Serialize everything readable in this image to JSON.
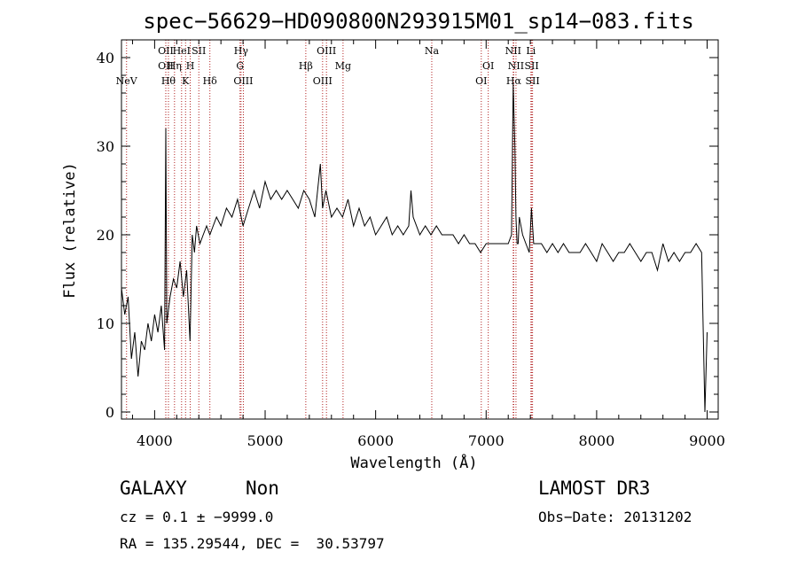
{
  "chart_data": {
    "type": "line",
    "title": "spec−56629−HD090800N293915M01_sp14−083.fits",
    "xlabel": "Wavelength (Å)",
    "ylabel": "Flux (relative)",
    "xlim": [
      3700,
      9100
    ],
    "ylim": [
      -0.8,
      42
    ],
    "xticks": [
      4000,
      5000,
      6000,
      7000,
      8000,
      9000
    ],
    "yticks": [
      0,
      10,
      20,
      30,
      40
    ],
    "grid": false,
    "series": [
      {
        "x": [
          3700,
          3730,
          3760,
          3790,
          3820,
          3850,
          3880,
          3910,
          3940,
          3970,
          4000,
          4030,
          4060,
          4090,
          4101,
          4110,
          4140,
          4170,
          4200,
          4230,
          4260,
          4290,
          4320,
          4340,
          4360,
          4380,
          4410,
          4440,
          4470,
          4500,
          4530,
          4560,
          4600,
          4650,
          4700,
          4750,
          4800,
          4850,
          4900,
          4950,
          5000,
          5050,
          5100,
          5150,
          5200,
          5250,
          5300,
          5350,
          5400,
          5450,
          5500,
          5520,
          5550,
          5600,
          5650,
          5700,
          5750,
          5800,
          5850,
          5900,
          5950,
          6000,
          6050,
          6100,
          6150,
          6200,
          6250,
          6300,
          6320,
          6340,
          6400,
          6450,
          6500,
          6550,
          6600,
          6650,
          6700,
          6750,
          6800,
          6850,
          6900,
          6950,
          7000,
          7050,
          7100,
          7150,
          7200,
          7230,
          7245,
          7260,
          7270,
          7280,
          7290,
          7300,
          7330,
          7360,
          7390,
          7410,
          7430,
          7460,
          7500,
          7550,
          7600,
          7650,
          7700,
          7750,
          7800,
          7850,
          7900,
          7950,
          8000,
          8050,
          8100,
          8150,
          8200,
          8250,
          8300,
          8350,
          8400,
          8450,
          8500,
          8550,
          8600,
          8650,
          8700,
          8750,
          8800,
          8850,
          8900,
          8950,
          8980,
          9000
        ],
        "y": [
          14,
          11,
          13,
          6,
          9,
          4,
          8,
          7,
          10,
          8,
          11,
          9,
          12,
          7,
          32,
          10,
          13,
          15,
          14,
          17,
          13,
          16,
          8,
          20,
          18,
          21,
          19,
          20,
          21,
          20,
          21,
          22,
          21,
          23,
          22,
          24,
          21,
          23,
          25,
          23,
          26,
          24,
          25,
          24,
          25,
          24,
          23,
          25,
          24,
          22,
          28,
          23,
          25,
          22,
          23,
          22,
          24,
          21,
          23,
          21,
          22,
          20,
          21,
          22,
          20,
          21,
          20,
          21,
          25,
          22,
          20,
          21,
          20,
          21,
          20,
          20,
          20,
          19,
          20,
          19,
          19,
          18,
          19,
          19,
          19,
          19,
          19,
          20,
          37,
          30,
          22,
          19,
          19,
          22,
          20,
          19,
          18,
          23,
          19,
          19,
          19,
          18,
          19,
          18,
          19,
          18,
          18,
          18,
          19,
          18,
          17,
          19,
          18,
          17,
          18,
          18,
          19,
          18,
          17,
          18,
          18,
          16,
          19,
          17,
          18,
          17,
          18,
          18,
          19,
          18,
          0,
          9
        ]
      }
    ],
    "spectral_lines": [
      {
        "name": "NeV",
        "wavelength": 3746,
        "row": 3
      },
      {
        "name": "OII",
        "wavelength": 4101,
        "row": 1
      },
      {
        "name": "OII",
        "wavelength": 4101,
        "row": 2
      },
      {
        "name": "Hθ",
        "wavelength": 4125,
        "row": 3
      },
      {
        "name": "Hη",
        "wavelength": 4180,
        "row": 2
      },
      {
        "name": "HeI",
        "wavelength": 4244,
        "row": 1
      },
      {
        "name": "K",
        "wavelength": 4280,
        "row": 3
      },
      {
        "name": "H",
        "wavelength": 4322,
        "row": 2
      },
      {
        "name": "SII",
        "wavelength": 4400,
        "row": 1
      },
      {
        "name": "Hδ",
        "wavelength": 4500,
        "row": 3
      },
      {
        "name": "Hγ",
        "wavelength": 4782,
        "row": 1
      },
      {
        "name": "G",
        "wavelength": 4773,
        "row": 2
      },
      {
        "name": "OIII",
        "wavelength": 4803,
        "row": 3
      },
      {
        "name": "OIII",
        "wavelength": 5555,
        "row": 1
      },
      {
        "name": "Hβ",
        "wavelength": 5368,
        "row": 2
      },
      {
        "name": "OIII",
        "wavelength": 5520,
        "row": 3
      },
      {
        "name": "Mg",
        "wavelength": 5705,
        "row": 2
      },
      {
        "name": "Na",
        "wavelength": 6508,
        "row": 1
      },
      {
        "name": "OI",
        "wavelength": 7019,
        "row": 2
      },
      {
        "name": "OI",
        "wavelength": 6956,
        "row": 3
      },
      {
        "name": "NII",
        "wavelength": 7245,
        "row": 1
      },
      {
        "name": "NII",
        "wavelength": 7270,
        "row": 2
      },
      {
        "name": "Hα",
        "wavelength": 7250,
        "row": 3
      },
      {
        "name": "Li",
        "wavelength": 7405,
        "row": 1
      },
      {
        "name": "SII",
        "wavelength": 7412,
        "row": 2
      },
      {
        "name": "SII",
        "wavelength": 7420,
        "row": 3
      }
    ],
    "colors": {
      "spectrum": "#000000",
      "line_markers": "#b22222",
      "frame": "#000000"
    }
  },
  "info": {
    "class": "GALAXY",
    "subclass": "Non",
    "survey": "LAMOST DR3",
    "cz": "cz = 0.1 ± −9999.0",
    "obs_date": "Obs−Date: 20131202",
    "radec": "RA = 135.29544, DEC =  30.53797"
  }
}
